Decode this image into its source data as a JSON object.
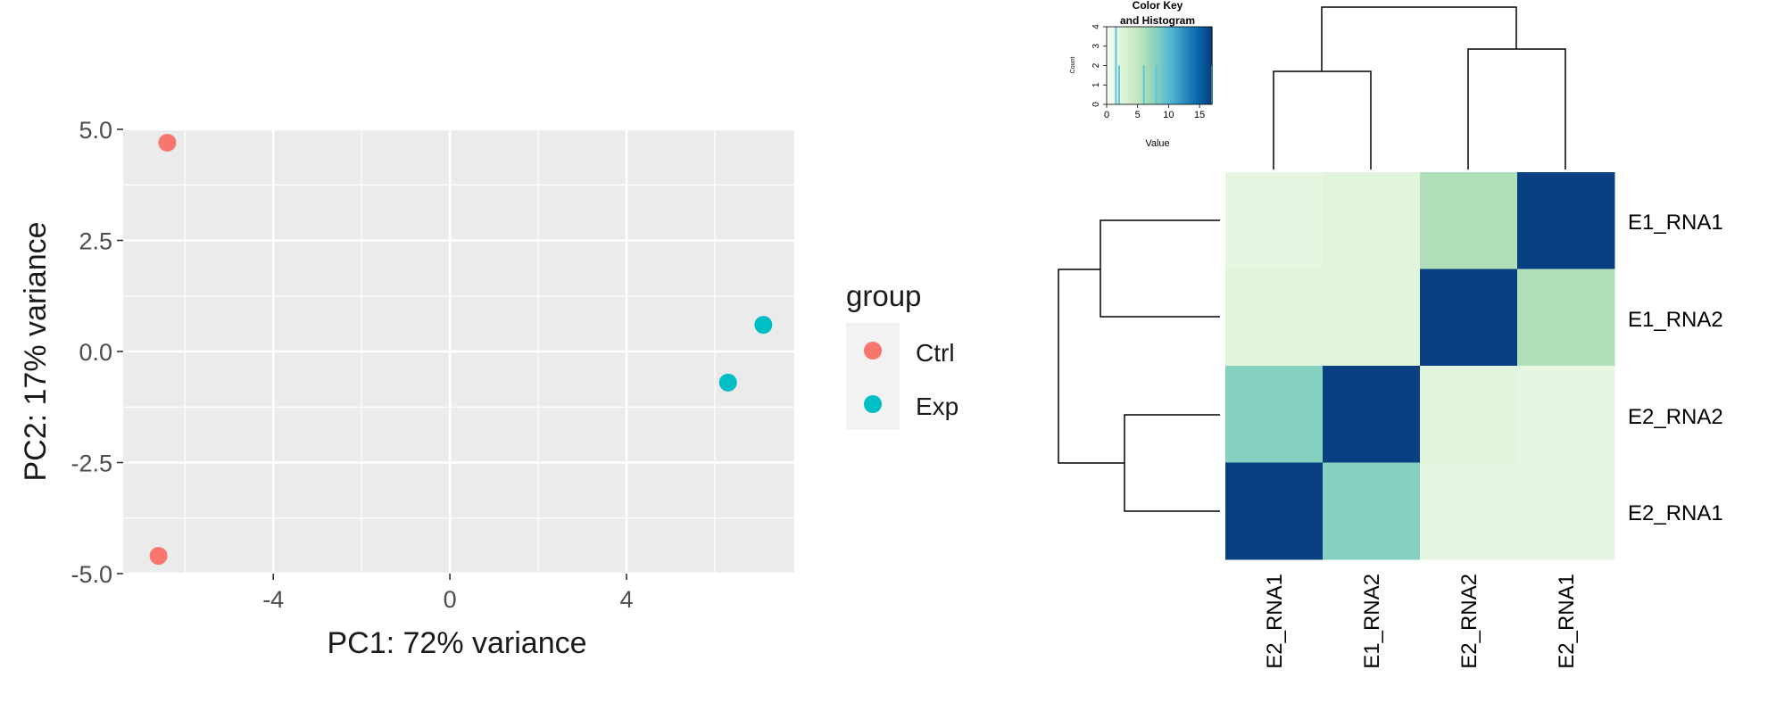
{
  "pca": {
    "xlabel": "PC1: 72% variance",
    "ylabel": "PC2: 17% variance",
    "legend_title": "group",
    "groups": [
      {
        "name": "Ctrl",
        "color": "#f8766d"
      },
      {
        "name": "Exp",
        "color": "#00bfc4"
      }
    ]
  },
  "heatmap": {
    "row_labels": [
      "E1_RNA1",
      "E1_RNA2",
      "E2_RNA2",
      "E2_RNA1"
    ],
    "col_labels": [
      "E2_RNA1",
      "E1_RNA2",
      "E2_RNA2",
      "E2_RNA1"
    ],
    "color_key": {
      "title_line1": "Color Key",
      "title_line2": "and Histogram",
      "xlabel": "Value",
      "ylabel": "Count",
      "x_ticks": [
        "0",
        "5",
        "10",
        "15"
      ],
      "y_ticks": [
        "0",
        "1",
        "2",
        "3",
        "4"
      ]
    }
  },
  "chart_data": [
    {
      "type": "scatter",
      "xlabel": "PC1: 72% variance",
      "ylabel": "PC2: 17% variance",
      "xlim": [
        -7.4,
        7.8
      ],
      "ylim": [
        -5.0,
        5.0
      ],
      "x_ticks": [
        -4,
        0,
        4
      ],
      "y_ticks": [
        5.0,
        2.5,
        0.0,
        -2.5,
        -5.0
      ],
      "grid": true,
      "legend": {
        "title": "group",
        "position": "right"
      },
      "series": [
        {
          "name": "Ctrl",
          "color": "#f8766d",
          "points": [
            [
              -6.4,
              4.7
            ],
            [
              -6.6,
              -4.6
            ]
          ]
        },
        {
          "name": "Exp",
          "color": "#00bfc4",
          "points": [
            [
              7.1,
              0.6
            ],
            [
              6.3,
              -0.7
            ]
          ]
        }
      ]
    },
    {
      "type": "heatmap",
      "rows": [
        "E1_RNA1",
        "E1_RNA2",
        "E2_RNA2",
        "E2_RNA1"
      ],
      "columns": [
        "E2_RNA1",
        "E1_RNA2",
        "E2_RNA2",
        "E2_RNA1"
      ],
      "values": [
        [
          1.5,
          2,
          6,
          17
        ],
        [
          2,
          2,
          17,
          6
        ],
        [
          8,
          17,
          2,
          1.5
        ],
        [
          17,
          8,
          1.5,
          1.5
        ]
      ],
      "color_scale": [
        "#f7fcf0",
        "#e0f3db",
        "#ccebc5",
        "#a8ddb5",
        "#7bccc4",
        "#4eb3d3",
        "#2b8cbe",
        "#0868ac",
        "#084081"
      ],
      "value_range": [
        0,
        17
      ],
      "color_key": {
        "title": "Color Key and Histogram",
        "xlabel": "Value",
        "ylabel": "Count",
        "x_ticks": [
          0,
          5,
          10,
          15
        ],
        "y_ticks": [
          0,
          1,
          2,
          3,
          4
        ]
      }
    }
  ]
}
